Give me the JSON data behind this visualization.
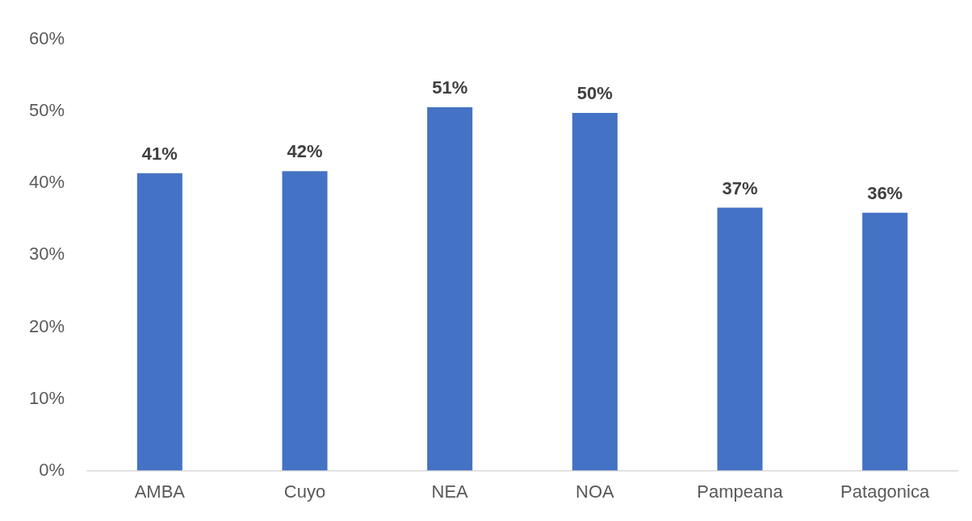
{
  "chart_data": {
    "type": "bar",
    "categories": [
      "AMBA",
      "Cuyo",
      "NEA",
      "NOA",
      "Pampeana",
      "Patagonica"
    ],
    "values": [
      41.4,
      41.7,
      50.6,
      49.8,
      36.6,
      35.9
    ],
    "value_labels": [
      "41%",
      "42%",
      "51%",
      "50%",
      "37%",
      "36%"
    ],
    "color": "#4472c4",
    "ylim": [
      0,
      60
    ],
    "yticks": [
      {
        "value": 0,
        "label": "0%"
      },
      {
        "value": 10,
        "label": "10%"
      },
      {
        "value": 20,
        "label": "20%"
      },
      {
        "value": 30,
        "label": "30%"
      },
      {
        "value": 40,
        "label": "40%"
      },
      {
        "value": 50,
        "label": "50%"
      },
      {
        "value": 60,
        "label": "60%"
      }
    ],
    "grid": false,
    "legend": false
  }
}
